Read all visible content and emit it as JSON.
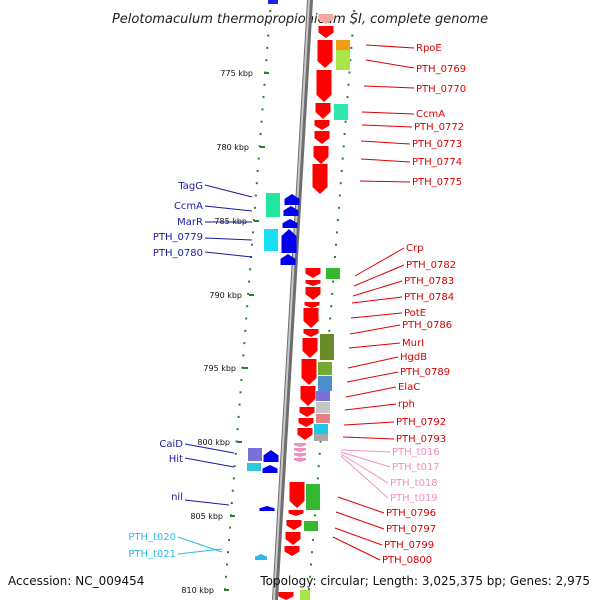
{
  "title": "Pelotomaculum thermopropionicum SI, complete genome",
  "accession": "Accession: NC_009454",
  "topology": "Topology: circular; Length: 3,025,375 bp; Genes: 2,975",
  "colors": {
    "axis_dots": "#2e7d32",
    "backbone": "#9a9a9a",
    "forward_arrows": "#ff0000",
    "reverse_arrows": "#0000ee",
    "forward_labels": "#dd0000",
    "reverse_labels": "#1a1aa0",
    "rna_forward": "#f090c0",
    "rna_reverse": "#30b8e8"
  },
  "scale_labels": [
    "775 kbp",
    "780 kbp",
    "785 kbp",
    "790 kbp",
    "795 kbp",
    "800 kbp",
    "805 kbp",
    "810 kbp"
  ],
  "reverse_genes": [
    "TagG",
    "CcmA",
    "MarR",
    "PTH_0779",
    "PTH_0780",
    "CaiD",
    "Hit",
    "nil"
  ],
  "reverse_rna": [
    "PTH_t020",
    "PTH_t021"
  ],
  "forward_genes": [
    "RpoE",
    "PTH_0769",
    "PTH_0770",
    "CcmA",
    "PTH_0772",
    "PTH_0773",
    "PTH_0774",
    "PTH_0775",
    "Crp",
    "PTH_0782",
    "PTH_0783",
    "PTH_0784",
    "PotE",
    "PTH_0786",
    "MurI",
    "HgdB",
    "PTH_0789",
    "ElaC",
    "rph",
    "PTH_0792",
    "PTH_0793",
    "PTH_0796",
    "PTH_0797",
    "PTH_0799",
    "PTH_0800"
  ],
  "forward_rna": [
    "PTH_t016",
    "PTH_t017",
    "PTH_t018",
    "PTH_t019"
  ]
}
